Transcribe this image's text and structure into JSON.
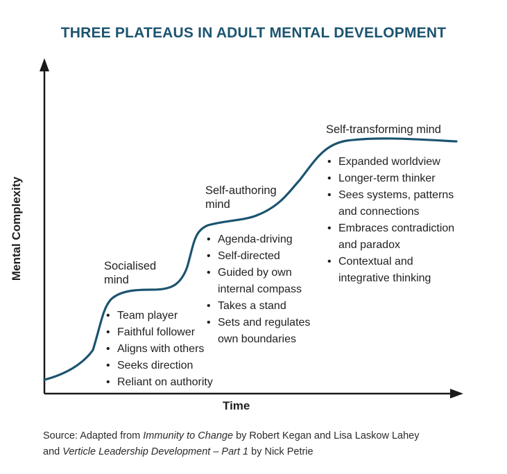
{
  "title": "THREE PLATEAUS IN ADULT MENTAL DEVELOPMENT",
  "y_axis_label": "Mental Complexity",
  "x_axis_label": "Time",
  "stages": [
    {
      "title": "Socialised\nmind",
      "traits": [
        "Team player",
        "Faithful follower",
        "Aligns with others",
        "Seeks direction",
        "Reliant on authority"
      ]
    },
    {
      "title": "Self-authoring\nmind",
      "traits": [
        "Agenda-driving",
        "Self-directed",
        "Guided by own\ninternal compass",
        "Takes a stand",
        "Sets and regulates\nown boundaries"
      ]
    },
    {
      "title": "Self-transforming mind",
      "traits": [
        "Expanded worldview",
        "Longer-term thinker",
        "Sees systems, patterns\nand connections",
        "Embraces contradiction\nand paradox",
        "Contextual and\nintegrative thinking"
      ]
    }
  ],
  "source": {
    "prefix": "Source: Adapted from ",
    "book1": "Immunity to Change",
    "mid1": " by Robert Kegan and Lisa Laskow Lahey",
    "line2_prefix": "and ",
    "book2": "Verticle Leadership Development – Part 1",
    "mid2": " by Nick Petrie"
  },
  "colors": {
    "title": "#1c5470",
    "curve": "#1c5470",
    "axis": "#1a1a1a"
  }
}
